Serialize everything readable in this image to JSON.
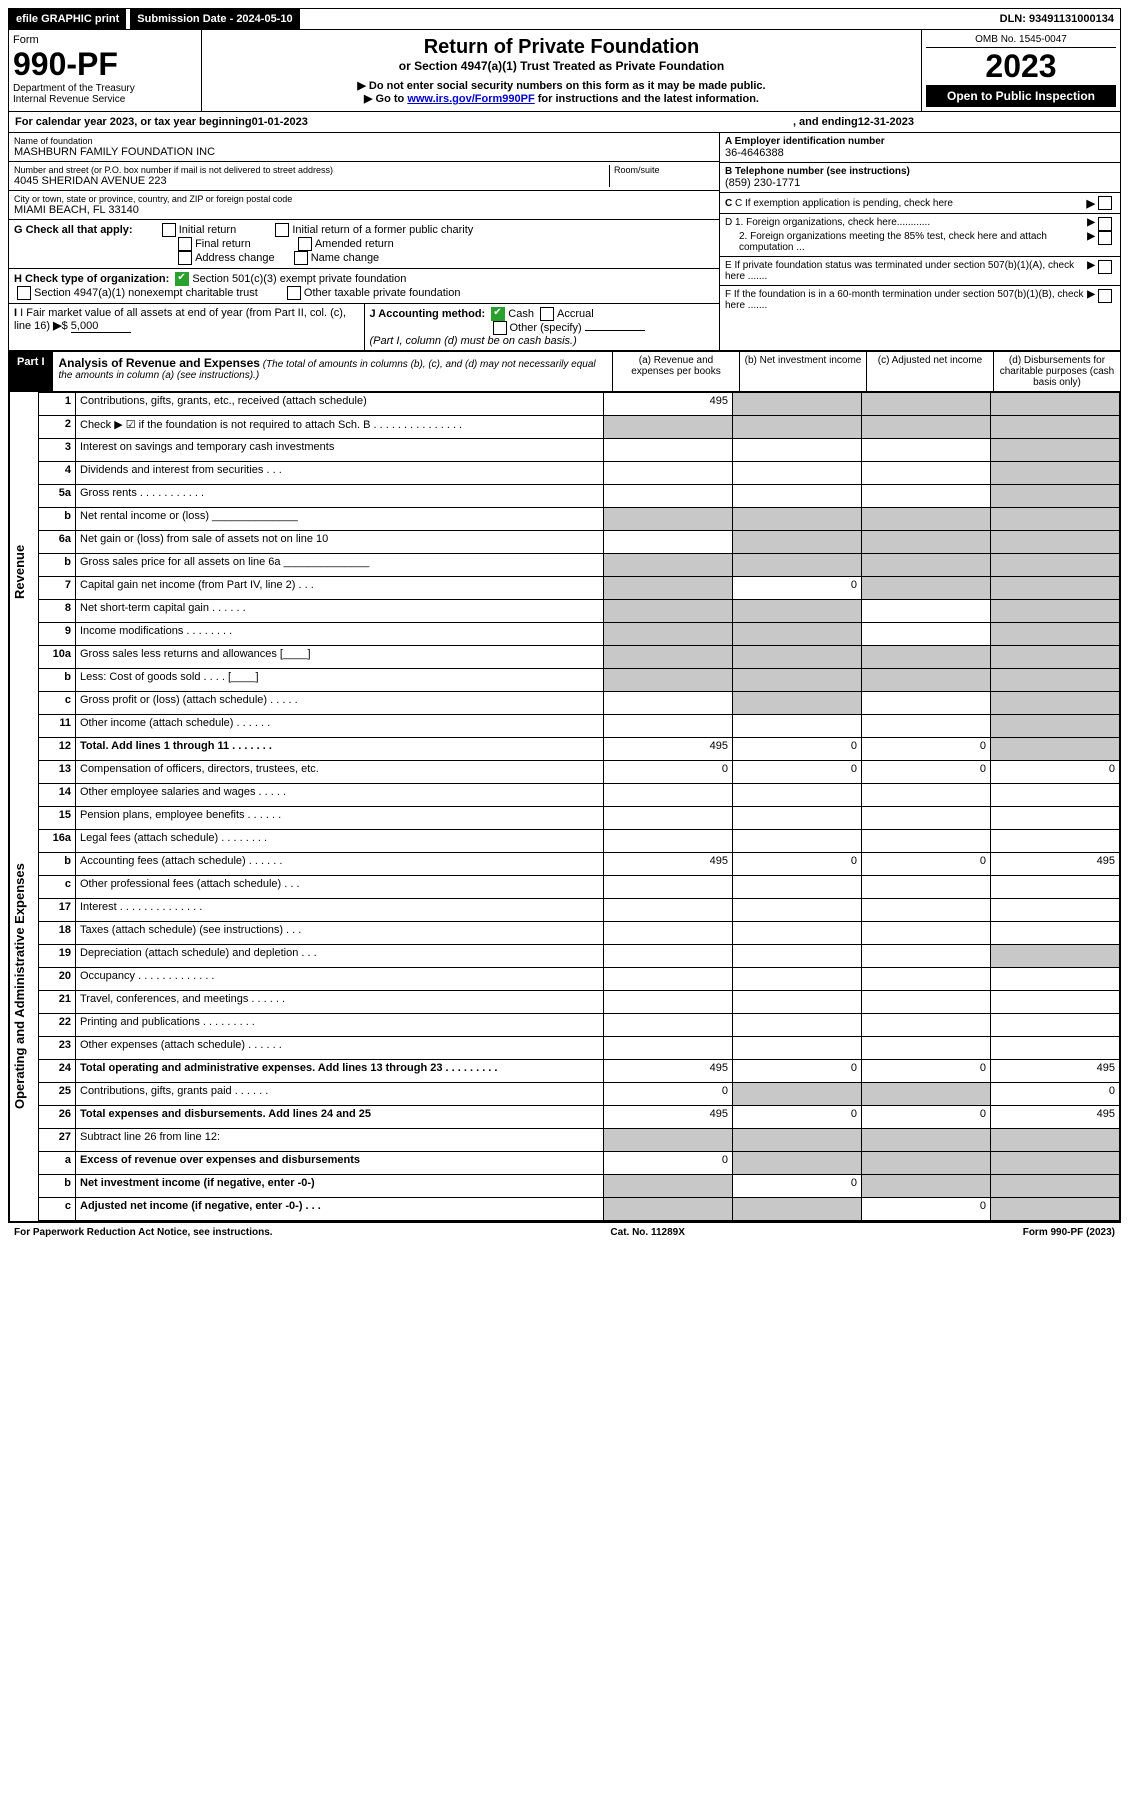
{
  "topbar": {
    "efile": "efile GRAPHIC print",
    "sub_label": "Submission Date - 2024-05-10",
    "dln": "DLN: 93491131000134"
  },
  "header": {
    "form_word": "Form",
    "form_num": "990-PF",
    "dept": "Department of the Treasury",
    "irs": "Internal Revenue Service",
    "title": "Return of Private Foundation",
    "subtitle": "or Section 4947(a)(1) Trust Treated as Private Foundation",
    "note1": "▶ Do not enter social security numbers on this form as it may be made public.",
    "note2_pre": "▶ Go to ",
    "note2_link": "www.irs.gov/Form990PF",
    "note2_post": " for instructions and the latest information.",
    "omb": "OMB No. 1545-0047",
    "year": "2023",
    "open": "Open to Public Inspection"
  },
  "cal": {
    "pre": "For calendar year 2023, or tax year beginning ",
    "begin": "01-01-2023",
    "mid": ", and ending ",
    "end": "12-31-2023"
  },
  "name_block": {
    "label": "Name of foundation",
    "name": "MASHBURN FAMILY FOUNDATION INC",
    "addr_label": "Number and street (or P.O. box number if mail is not delivered to street address)",
    "addr": "4045 SHERIDAN AVENUE 223",
    "room_label": "Room/suite",
    "city_label": "City or town, state or province, country, and ZIP or foreign postal code",
    "city": "MIAMI BEACH, FL  33140"
  },
  "right_block": {
    "a_label": "A Employer identification number",
    "a_val": "36-4646388",
    "b_label": "B Telephone number (see instructions)",
    "b_val": "(859) 230-1771",
    "c_label": "C If exemption application is pending, check here",
    "d1": "D 1. Foreign organizations, check here............",
    "d2": "2. Foreign organizations meeting the 85% test, check here and attach computation ...",
    "e": "E  If private foundation status was terminated under section 507(b)(1)(A), check here .......",
    "f": "F  If the foundation is in a 60-month termination under section 507(b)(1)(B), check here ......."
  },
  "g": {
    "label": "G Check all that apply:",
    "opts": [
      "Initial return",
      "Final return",
      "Address change",
      "Initial return of a former public charity",
      "Amended return",
      "Name change"
    ]
  },
  "h": {
    "label": "H Check type of organization:",
    "o1": "Section 501(c)(3) exempt private foundation",
    "o2": "Section 4947(a)(1) nonexempt charitable trust",
    "o3": "Other taxable private foundation"
  },
  "i": {
    "label": "I Fair market value of all assets at end of year (from Part II, col. (c), line 16)",
    "val": "5,000"
  },
  "j": {
    "label": "J Accounting method:",
    "cash": "Cash",
    "accrual": "Accrual",
    "other": "Other (specify)",
    "note": "(Part I, column (d) must be on cash basis.)"
  },
  "part1": {
    "label": "Part I",
    "title": "Analysis of Revenue and Expenses",
    "note": "(The total of amounts in columns (b), (c), and (d) may not necessarily equal the amounts in column (a) (see instructions).)",
    "col_a": "(a)   Revenue and expenses per books",
    "col_b": "(b)   Net investment income",
    "col_c": "(c)   Adjusted net income",
    "col_d": "(d)   Disbursements for charitable purposes (cash basis only)"
  },
  "side": {
    "rev": "Revenue",
    "exp": "Operating and Administrative Expenses"
  },
  "lines": [
    {
      "n": "1",
      "d": "Contributions, gifts, grants, etc., received (attach schedule)",
      "a": "495",
      "grey_bcd": true,
      "grey_d": true
    },
    {
      "n": "2",
      "d": "Check ▶ ☑ if the foundation is not required to attach Sch. B   .   .   .   .   .   .   .   .   .   .   .   .   .   .   .",
      "all_grey": true
    },
    {
      "n": "3",
      "d": "Interest on savings and temporary cash investments",
      "grey_d": true
    },
    {
      "n": "4",
      "d": "Dividends and interest from securities    .   .   .",
      "grey_d": true
    },
    {
      "n": "5a",
      "d": "Gross rents    .   .   .   .   .   .   .   .   .   .   .",
      "grey_d": true
    },
    {
      "n": "b",
      "d": "Net rental income or (loss) ______________",
      "all_grey": true
    },
    {
      "n": "6a",
      "d": "Net gain or (loss) from sale of assets not on line 10",
      "grey_bcd": true,
      "grey_d": true
    },
    {
      "n": "b",
      "d": "Gross sales price for all assets on line 6a ______________",
      "all_grey": true
    },
    {
      "n": "7",
      "d": "Capital gain net income (from Part IV, line 2)   .   .   .",
      "grey_a": true,
      "b": "0",
      "grey_cd": true
    },
    {
      "n": "8",
      "d": "Net short-term capital gain   .   .   .   .   .   .",
      "grey_ab": true,
      "grey_d": true
    },
    {
      "n": "9",
      "d": "Income modifications  .   .   .   .   .   .   .   .",
      "grey_ab": true,
      "grey_d": true
    },
    {
      "n": "10a",
      "d": "Gross sales less returns and allowances   [____]",
      "all_grey": true
    },
    {
      "n": "b",
      "d": "Less: Cost of goods sold   .   .   .   .   [____]",
      "all_grey": true
    },
    {
      "n": "c",
      "d": "Gross profit or (loss) (attach schedule)   .   .   .   .   .",
      "grey_b": true,
      "grey_d": true
    },
    {
      "n": "11",
      "d": "Other income (attach schedule)   .   .   .   .   .   .",
      "grey_d": true
    },
    {
      "n": "12",
      "d": "Total. Add lines 1 through 11   .   .   .   .   .   .   .",
      "bold": true,
      "a": "495",
      "b": "0",
      "c": "0",
      "grey_d": true
    },
    {
      "n": "13",
      "d": "Compensation of officers, directors, trustees, etc.",
      "a": "0",
      "b": "0",
      "c": "0",
      "dd": "0"
    },
    {
      "n": "14",
      "d": "Other employee salaries and wages   .   .   .   .   ."
    },
    {
      "n": "15",
      "d": "Pension plans, employee benefits  .   .   .   .   .   ."
    },
    {
      "n": "16a",
      "d": "Legal fees (attach schedule)  .   .   .   .   .   .   .   ."
    },
    {
      "n": "b",
      "d": "Accounting fees (attach schedule)  .   .   .   .   .   .",
      "a": "495",
      "b": "0",
      "c": "0",
      "dd": "495"
    },
    {
      "n": "c",
      "d": "Other professional fees (attach schedule)   .   .   ."
    },
    {
      "n": "17",
      "d": "Interest  .   .   .   .   .   .   .   .   .   .   .   .   .   ."
    },
    {
      "n": "18",
      "d": "Taxes (attach schedule) (see instructions)   .   .   ."
    },
    {
      "n": "19",
      "d": "Depreciation (attach schedule) and depletion   .   .   .",
      "grey_d": true
    },
    {
      "n": "20",
      "d": "Occupancy  .   .   .   .   .   .   .   .   .   .   .   .   ."
    },
    {
      "n": "21",
      "d": "Travel, conferences, and meetings  .   .   .   .   .   ."
    },
    {
      "n": "22",
      "d": "Printing and publications  .   .   .   .   .   .   .   .   ."
    },
    {
      "n": "23",
      "d": "Other expenses (attach schedule)  .   .   .   .   .   ."
    },
    {
      "n": "24",
      "d": "Total operating and administrative expenses. Add lines 13 through 23   .   .   .   .   .   .   .   .   .",
      "bold": true,
      "a": "495",
      "b": "0",
      "c": "0",
      "dd": "495"
    },
    {
      "n": "25",
      "d": "Contributions, gifts, grants paid    .   .   .   .   .   .",
      "a": "0",
      "grey_bc": true,
      "dd": "0"
    },
    {
      "n": "26",
      "d": "Total expenses and disbursements. Add lines 24 and 25",
      "bold": true,
      "a": "495",
      "b": "0",
      "c": "0",
      "dd": "495"
    },
    {
      "n": "27",
      "d": "Subtract line 26 from line 12:",
      "all_grey": true,
      "grey_a": false
    },
    {
      "n": "a",
      "d": "Excess of revenue over expenses and disbursements",
      "bold": true,
      "a": "0",
      "grey_bcd": true
    },
    {
      "n": "b",
      "d": "Net investment income (if negative, enter -0-)",
      "bold": true,
      "grey_a": true,
      "b": "0",
      "grey_cd": true
    },
    {
      "n": "c",
      "d": "Adjusted net income (if negative, enter -0-)   .   .   .",
      "bold": true,
      "grey_ab": true,
      "c": "0",
      "grey_d": true
    }
  ],
  "footer": {
    "left": "For Paperwork Reduction Act Notice, see instructions.",
    "mid": "Cat. No. 11289X",
    "right": "Form 990-PF (2023)"
  }
}
